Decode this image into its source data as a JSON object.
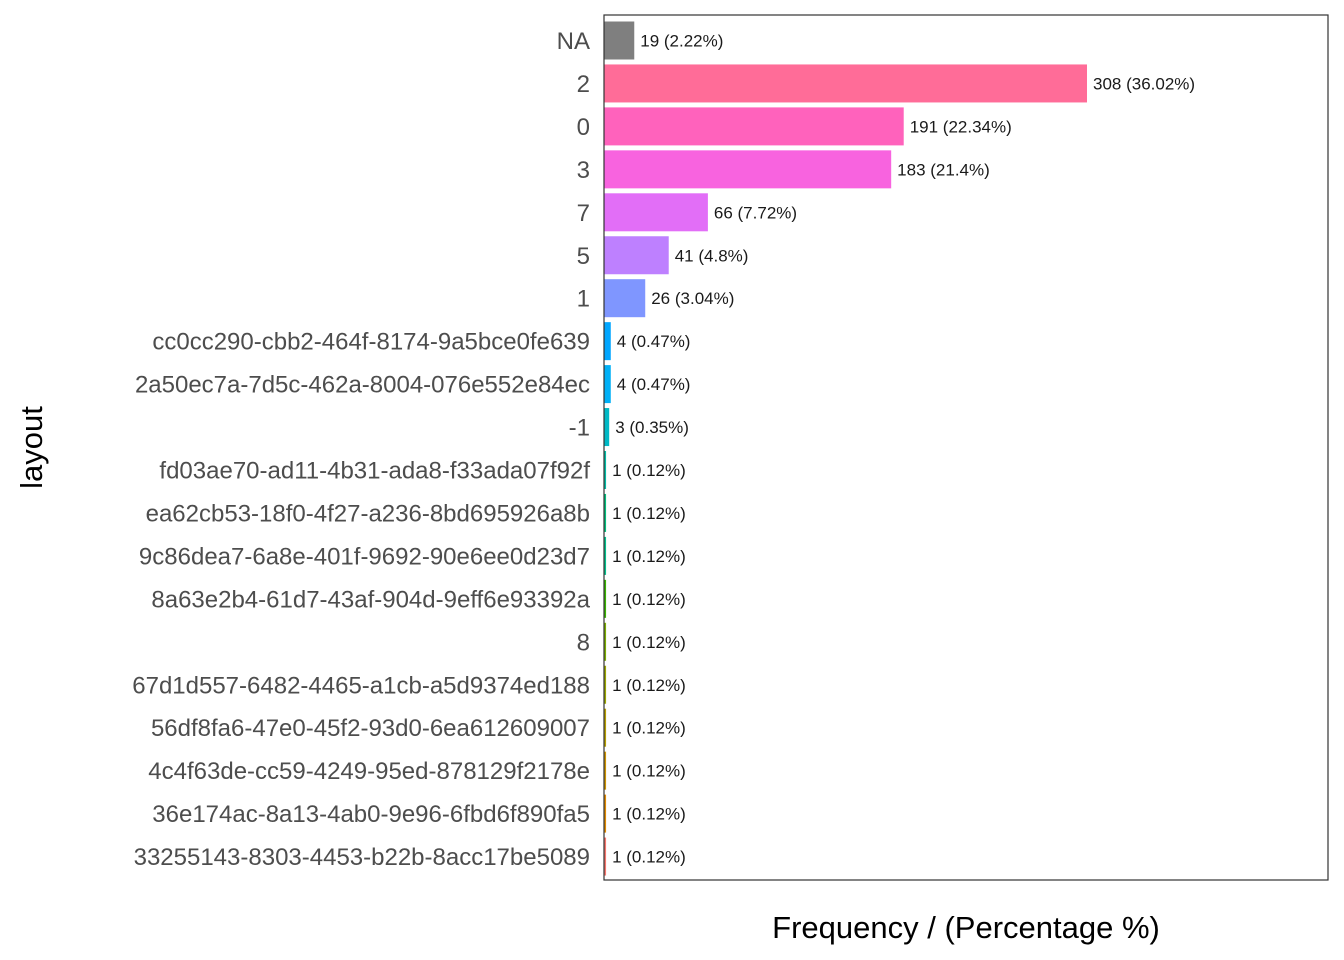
{
  "chart_data": {
    "type": "bar",
    "orientation": "horizontal",
    "xlabel": "Frequency / (Percentage %)",
    "ylabel": "layout",
    "xlim": [
      0,
      308
    ],
    "grid": false,
    "legend": "none",
    "bars": [
      {
        "category": "NA",
        "value": 19,
        "label": "19 (2.22%)",
        "color": "#7f7f7f"
      },
      {
        "category": "2",
        "value": 308,
        "label": "308 (36.02%)",
        "color": "#ff6c98"
      },
      {
        "category": "0",
        "value": 191,
        "label": "191 (22.34%)",
        "color": "#ff62bc"
      },
      {
        "category": "3",
        "value": 183,
        "label": "183 (21.4%)",
        "color": "#f863df"
      },
      {
        "category": "7",
        "value": 66,
        "label": "66 (7.72%)",
        "color": "#e26ef7"
      },
      {
        "category": "5",
        "value": 41,
        "label": "41 (4.8%)",
        "color": "#be80ff"
      },
      {
        "category": "1",
        "value": 26,
        "label": "26 (3.04%)",
        "color": "#7f96ff"
      },
      {
        "category": "cc0cc290-cbb2-464f-8174-9a5bce0fe639",
        "value": 4,
        "label": "4 (0.47%)",
        "color": "#00a6ff"
      },
      {
        "category": "2a50ec7a-7d5c-462a-8004-076e552e84ec",
        "value": 4,
        "label": "4 (0.47%)",
        "color": "#00b0f6"
      },
      {
        "category": "-1",
        "value": 3,
        "label": "3 (0.35%)",
        "color": "#00b8c4"
      },
      {
        "category": "fd03ae70-ad11-4b31-ada8-f33ada07f92f",
        "value": 1,
        "label": "1 (0.12%)",
        "color": "#00bca6"
      },
      {
        "category": "ea62cb53-18f0-4f27-a236-8bd695926a8b",
        "value": 1,
        "label": "1 (0.12%)",
        "color": "#00bf7d"
      },
      {
        "category": "9c86dea7-6a8e-401f-9692-90e6ee0d23d7",
        "value": 1,
        "label": "1 (0.12%)",
        "color": "#00c08b"
      },
      {
        "category": "8a63e2b4-61d7-43af-904d-9eff6e93392a",
        "value": 1,
        "label": "1 (0.12%)",
        "color": "#39b600"
      },
      {
        "category": "8",
        "value": 1,
        "label": "1 (0.12%)",
        "color": "#7cae00"
      },
      {
        "category": "67d1d557-6482-4465-a1cb-a5d9374ed188",
        "value": 1,
        "label": "1 (0.12%)",
        "color": "#9ca700"
      },
      {
        "category": "56df8fa6-47e0-45f2-93d0-6ea612609007",
        "value": 1,
        "label": "1 (0.12%)",
        "color": "#b79f00"
      },
      {
        "category": "4c4f63de-cc59-4249-95ed-878129f2178e",
        "value": 1,
        "label": "1 (0.12%)",
        "color": "#cf9400"
      },
      {
        "category": "36e174ac-8a13-4ab0-9e96-6fbd6f890fa5",
        "value": 1,
        "label": "1 (0.12%)",
        "color": "#e18a00"
      },
      {
        "category": "33255143-8303-4453-b22b-8acc17be5089",
        "value": 1,
        "label": "1 (0.12%)",
        "color": "#f8766d"
      }
    ]
  }
}
